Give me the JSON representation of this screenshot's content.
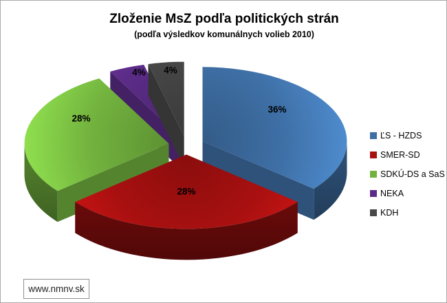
{
  "page": {
    "background": "#ffffff",
    "border_color": "#a8a8a8"
  },
  "chart_data": {
    "type": "pie",
    "style": "3d-exploded",
    "title": "Zloženie MsZ podľa politických strán",
    "subtitle": "(podľa výsledkov komunálnych volieb 2010)",
    "legend_position": "right",
    "grid": false,
    "slices": [
      {
        "party": "ĽS - HZDS",
        "value": 36,
        "label": "36%",
        "color": "#3E6FA5"
      },
      {
        "party": "SMER-SD",
        "value": 28,
        "label": "28%",
        "color": "#A81010"
      },
      {
        "party": "SDKÚ-DS a SaS",
        "value": 28,
        "label": "28%",
        "color": "#72B23E"
      },
      {
        "party": "NEKA",
        "value": 4,
        "label": "4%",
        "color": "#5B2C87"
      },
      {
        "party": "KDH",
        "value": 4,
        "label": "4%",
        "color": "#474747"
      }
    ],
    "source_label": "www.nmnv.sk"
  }
}
